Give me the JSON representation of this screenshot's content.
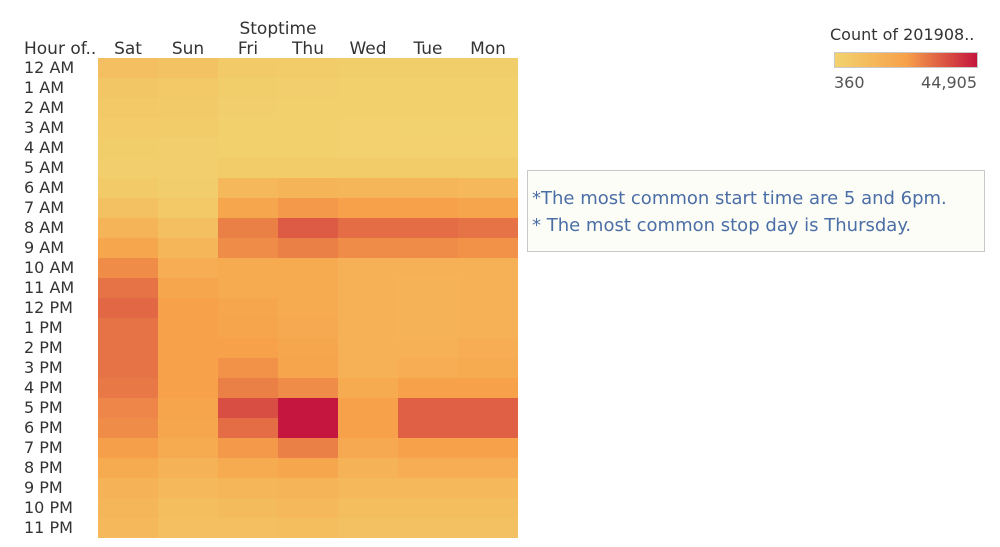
{
  "chart_data": {
    "type": "heatmap",
    "column_header_title": "Stoptime",
    "row_header_title": "Hour of..",
    "columns": [
      "Sat",
      "Sun",
      "Fri",
      "Thu",
      "Wed",
      "Tue",
      "Mon"
    ],
    "rows": [
      "12 AM",
      "1 AM",
      "2 AM",
      "3 AM",
      "4 AM",
      "5 AM",
      "6 AM",
      "7 AM",
      "8 AM",
      "9 AM",
      "10 AM",
      "11 AM",
      "12 PM",
      "1 PM",
      "2 PM",
      "3 PM",
      "4 PM",
      "5 PM",
      "6 PM",
      "7 PM",
      "8 PM",
      "9 PM",
      "10 PM",
      "11 PM"
    ],
    "values": [
      [
        9000,
        7000,
        4000,
        3000,
        2000,
        2000,
        2000
      ],
      [
        6000,
        5000,
        2000,
        1500,
        1000,
        1000,
        1000
      ],
      [
        5000,
        4000,
        1500,
        1000,
        800,
        700,
        700
      ],
      [
        3500,
        3000,
        1000,
        800,
        600,
        500,
        500
      ],
      [
        2000,
        1500,
        800,
        700,
        600,
        600,
        600
      ],
      [
        1500,
        1500,
        3000,
        3000,
        3000,
        3000,
        3000
      ],
      [
        4000,
        2500,
        12000,
        14000,
        13000,
        13000,
        12000
      ],
      [
        8000,
        5000,
        20000,
        24000,
        22000,
        22000,
        21000
      ],
      [
        14000,
        9000,
        28000,
        34000,
        31000,
        31000,
        30000
      ],
      [
        20000,
        13000,
        26000,
        28000,
        26000,
        26000,
        25000
      ],
      [
        26000,
        17000,
        18000,
        18000,
        16000,
        16000,
        16000
      ],
      [
        30000,
        20000,
        18000,
        18000,
        16000,
        15000,
        16000
      ],
      [
        32000,
        22000,
        20000,
        18000,
        16000,
        15000,
        16000
      ],
      [
        30000,
        22000,
        21000,
        19000,
        16000,
        15000,
        16000
      ],
      [
        30000,
        22000,
        22000,
        20000,
        16000,
        16000,
        17000
      ],
      [
        30000,
        22000,
        25000,
        21000,
        16000,
        17000,
        18000
      ],
      [
        29000,
        22000,
        28000,
        26000,
        18000,
        22000,
        22000
      ],
      [
        27000,
        21000,
        36000,
        44905,
        22000,
        33000,
        33000
      ],
      [
        26000,
        20000,
        31000,
        44905,
        22000,
        33000,
        33000
      ],
      [
        23000,
        18000,
        24000,
        28000,
        19000,
        22000,
        22000
      ],
      [
        18000,
        15000,
        18000,
        20000,
        15000,
        17000,
        17000
      ],
      [
        15000,
        12000,
        13000,
        14000,
        12000,
        12000,
        12000
      ],
      [
        13000,
        10000,
        11000,
        12000,
        10000,
        10000,
        10000
      ],
      [
        12000,
        9000,
        9000,
        10000,
        8000,
        8000,
        8000
      ]
    ],
    "color_scale": {
      "title": "Count of 201908..",
      "min": 360,
      "max": 44905,
      "min_label": "360",
      "max_label": "44,905",
      "min_color": "#f2d26e",
      "mid_color": "#f7a14a",
      "max_color": "#c4163e"
    }
  },
  "annotation": {
    "line1": "*The most common start time are 5 and 6pm.",
    "line2": "* The most common stop day is Thursday."
  }
}
